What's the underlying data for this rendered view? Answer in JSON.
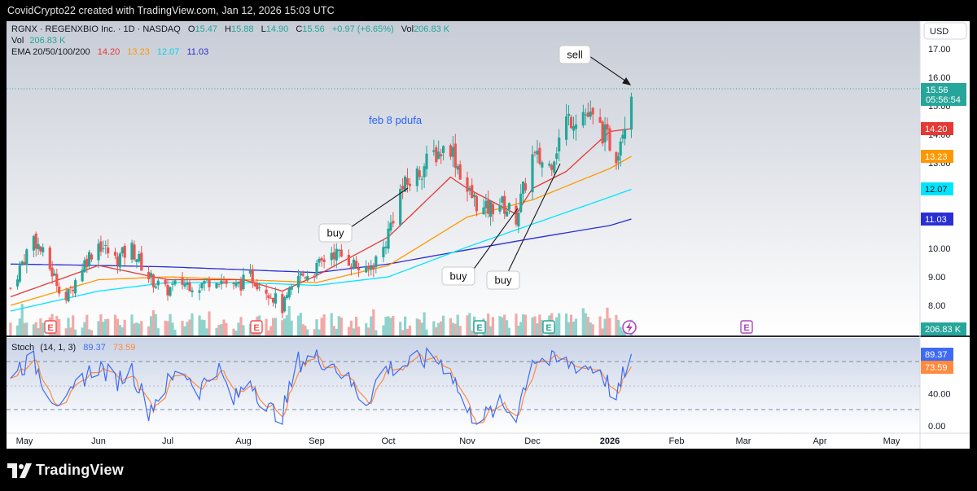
{
  "header": {
    "caption": "CovidCrypto22 created with TradingView.com, Jan 12, 2026 15:03 UTC"
  },
  "legend": {
    "symbol": "RGNX · REGENXBIO Inc. · 1D · NASDAQ",
    "open_label": "O",
    "open": "15.47",
    "high_label": "H",
    "high": "15.88",
    "low_label": "L",
    "low": "14.90",
    "close_label": "C",
    "close": "15.56",
    "change": "+0.97 (+6.65%)",
    "vol_inline_label": "Vol",
    "vol_inline": "206.83 K",
    "vol_label": "Vol",
    "vol_value": "206.83 K",
    "ema_label": "EMA 20/50/100/200",
    "ema20": "14.20",
    "ema50": "13.23",
    "ema100": "12.07",
    "ema200": "11.03",
    "currency": "USD"
  },
  "colors": {
    "up": "#26a69a",
    "down": "#ef5350",
    "ema20": "#e53935",
    "ema50": "#ff9800",
    "ema100": "#00e5ff",
    "ema200": "#2a2fd4",
    "k_line": "#3d6bf5",
    "d_line": "#ff8a3d",
    "annotation_text": "#2962ff"
  },
  "badges": {
    "price": "15.56",
    "countdown": "05:56:54",
    "ema20": "14.20",
    "ema50": "13.23",
    "ema100": "12.07",
    "ema200": "11.03",
    "volume": "206.83 K",
    "stoch_k": "89.37",
    "stoch_d": "73.59"
  },
  "annotations": {
    "pdufa": "feb 8 pdufa",
    "buy1": "buy",
    "buy2": "buy",
    "buy3": "buy",
    "sell": "sell"
  },
  "stoch": {
    "label": "Stoch",
    "params": "(14, 1, 3)",
    "k": "89.37",
    "d": "73.59"
  },
  "earnings_icon": "E",
  "branding": {
    "name": "TradingView"
  },
  "chart_data": {
    "type": "candlestick",
    "title": "RGNX · REGENXBIO Inc. · 1D · NASDAQ",
    "price_ylim": [
      7.6,
      17.8
    ],
    "price_ticks": [
      "17.00",
      "16.00",
      "15.00",
      "14.00",
      "13.00",
      "12.00",
      "11.00",
      "10.00",
      "9.00",
      "8.00"
    ],
    "stoch_ticks": [
      "80.00",
      "40.00",
      "0.00"
    ],
    "x_labels": [
      "May",
      "Jun",
      "Jul",
      "Aug",
      "Sep",
      "Oct",
      "Nov",
      "Dec",
      "2026",
      "Feb",
      "Mar",
      "Apr",
      "May"
    ],
    "x_label_dates": [
      "2025-05-01",
      "2025-06-02",
      "2025-07-01",
      "2025-08-01",
      "2025-09-02",
      "2025-10-01",
      "2025-11-03",
      "2025-12-01",
      "2026-01-02",
      "2026-02-02",
      "2026-03-02",
      "2026-04-01",
      "2026-05-01"
    ],
    "ema_waypoints": {
      "ema20": [
        [
          "2025-04-25",
          8.3
        ],
        [
          "2025-06-02",
          9.4
        ],
        [
          "2025-07-01",
          8.9
        ],
        [
          "2025-08-01",
          8.9
        ],
        [
          "2025-08-18",
          8.5
        ],
        [
          "2025-09-02",
          9.05
        ],
        [
          "2025-10-01",
          10.4
        ],
        [
          "2025-10-27",
          12.5
        ],
        [
          "2025-11-03",
          12.1
        ],
        [
          "2025-11-24",
          11.2
        ],
        [
          "2025-12-01",
          12.1
        ],
        [
          "2025-12-15",
          12.7
        ],
        [
          "2026-01-02",
          14.1
        ],
        [
          "2026-01-12",
          14.2
        ]
      ],
      "ema50": [
        [
          "2025-04-25",
          8.0
        ],
        [
          "2025-06-02",
          8.9
        ],
        [
          "2025-07-01",
          9.0
        ],
        [
          "2025-08-01",
          8.9
        ],
        [
          "2025-09-02",
          8.8
        ],
        [
          "2025-10-01",
          9.4
        ],
        [
          "2025-11-03",
          11.1
        ],
        [
          "2025-12-01",
          11.7
        ],
        [
          "2026-01-02",
          12.8
        ],
        [
          "2026-01-12",
          13.23
        ]
      ],
      "ema100": [
        [
          "2025-04-25",
          7.8
        ],
        [
          "2025-06-02",
          8.5
        ],
        [
          "2025-07-01",
          8.8
        ],
        [
          "2025-08-01",
          8.8
        ],
        [
          "2025-09-02",
          8.7
        ],
        [
          "2025-10-01",
          9.0
        ],
        [
          "2025-11-03",
          10.05
        ],
        [
          "2025-12-01",
          10.85
        ],
        [
          "2026-01-02",
          11.8
        ],
        [
          "2026-01-12",
          12.07
        ]
      ],
      "ema200": [
        [
          "2025-04-25",
          9.45
        ],
        [
          "2025-06-02",
          9.4
        ],
        [
          "2025-07-01",
          9.35
        ],
        [
          "2025-08-01",
          9.25
        ],
        [
          "2025-09-02",
          9.15
        ],
        [
          "2025-10-01",
          9.45
        ],
        [
          "2025-11-03",
          9.95
        ],
        [
          "2025-12-01",
          10.35
        ],
        [
          "2026-01-02",
          10.8
        ],
        [
          "2026-01-12",
          11.03
        ]
      ]
    },
    "close_waypoints": [
      [
        "2025-04-25",
        8.6
      ],
      [
        "2025-05-05",
        10.4
      ],
      [
        "2025-05-12",
        9.3
      ],
      [
        "2025-05-19",
        8.2
      ],
      [
        "2025-05-26",
        9.4
      ],
      [
        "2025-06-02",
        10.2
      ],
      [
        "2025-06-09",
        9.6
      ],
      [
        "2025-06-16",
        10.0
      ],
      [
        "2025-06-23",
        9.0
      ],
      [
        "2025-06-30",
        8.5
      ],
      [
        "2025-07-07",
        8.8
      ],
      [
        "2025-07-14",
        8.7
      ],
      [
        "2025-07-21",
        9.0
      ],
      [
        "2025-07-28",
        8.6
      ],
      [
        "2025-08-04",
        9.0
      ],
      [
        "2025-08-11",
        8.6
      ],
      [
        "2025-08-18",
        7.9
      ],
      [
        "2025-08-25",
        9.0
      ],
      [
        "2025-09-01",
        9.2
      ],
      [
        "2025-09-08",
        9.9
      ],
      [
        "2025-09-15",
        9.6
      ],
      [
        "2025-09-22",
        9.1
      ],
      [
        "2025-09-29",
        10.0
      ],
      [
        "2025-10-06",
        12.0
      ],
      [
        "2025-10-13",
        12.6
      ],
      [
        "2025-10-20",
        13.3
      ],
      [
        "2025-10-27",
        13.6
      ],
      [
        "2025-11-03",
        12.0
      ],
      [
        "2025-11-10",
        11.3
      ],
      [
        "2025-11-17",
        11.6
      ],
      [
        "2025-11-24",
        11.1
      ],
      [
        "2025-12-01",
        13.2
      ],
      [
        "2025-12-08",
        12.9
      ],
      [
        "2025-12-15",
        14.5
      ],
      [
        "2025-12-22",
        14.8
      ],
      [
        "2025-12-29",
        14.2
      ],
      [
        "2026-01-05",
        13.3
      ],
      [
        "2026-01-09",
        14.6
      ],
      [
        "2026-01-12",
        15.56
      ]
    ],
    "stoch_waypoints": [
      [
        "2025-04-25",
        70
      ],
      [
        "2025-05-05",
        80
      ],
      [
        "2025-05-12",
        40
      ],
      [
        "2025-05-19",
        25
      ],
      [
        "2025-05-26",
        60
      ],
      [
        "2025-06-02",
        75
      ],
      [
        "2025-06-09",
        55
      ],
      [
        "2025-06-16",
        70
      ],
      [
        "2025-06-23",
        20
      ],
      [
        "2025-06-30",
        50
      ],
      [
        "2025-07-07",
        70
      ],
      [
        "2025-07-14",
        45
      ],
      [
        "2025-07-21",
        75
      ],
      [
        "2025-07-28",
        30
      ],
      [
        "2025-08-04",
        60
      ],
      [
        "2025-08-11",
        20
      ],
      [
        "2025-08-18",
        15
      ],
      [
        "2025-08-25",
        80
      ],
      [
        "2025-09-01",
        85
      ],
      [
        "2025-09-08",
        80
      ],
      [
        "2025-09-15",
        55
      ],
      [
        "2025-09-22",
        30
      ],
      [
        "2025-09-29",
        70
      ],
      [
        "2025-10-06",
        75
      ],
      [
        "2025-10-13",
        80
      ],
      [
        "2025-10-20",
        85
      ],
      [
        "2025-10-27",
        70
      ],
      [
        "2025-11-03",
        15
      ],
      [
        "2025-11-10",
        10
      ],
      [
        "2025-11-17",
        25
      ],
      [
        "2025-11-24",
        15
      ],
      [
        "2025-12-01",
        85
      ],
      [
        "2025-12-08",
        80
      ],
      [
        "2025-12-15",
        78
      ],
      [
        "2025-12-22",
        75
      ],
      [
        "2025-12-29",
        70
      ],
      [
        "2026-01-05",
        30
      ],
      [
        "2026-01-09",
        70
      ],
      [
        "2026-01-12",
        89.37
      ]
    ],
    "volume_note": "volume bars in thousands estimated from bar heights; last value 206.83 K"
  }
}
